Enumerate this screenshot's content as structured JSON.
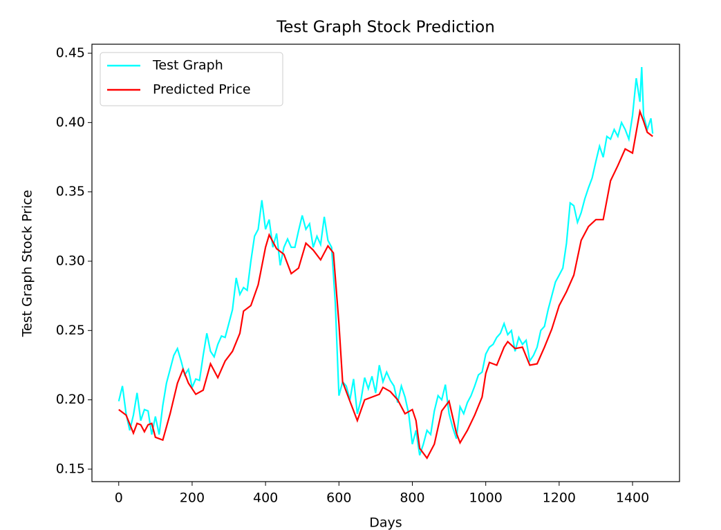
{
  "chart_data": {
    "type": "line",
    "title": "Test Graph Stock Prediction",
    "x_label": "Days",
    "y_label": "Test Graph Stock Price",
    "xlim": [
      -73,
      1528
    ],
    "ylim": [
      0.141,
      0.4565
    ],
    "xticks": [
      0,
      200,
      400,
      600,
      800,
      1000,
      1200,
      1400
    ],
    "yticks": [
      0.15,
      {
        "value": 0.2,
        "label": "0.20"
      },
      0.25,
      {
        "value": 0.3,
        "label": "0.30"
      },
      0.35,
      {
        "value": 0.4,
        "label": "0.40"
      },
      0.45
    ],
    "legend": "upper left",
    "series": [
      {
        "name": "Test Graph",
        "color": "#00ffff",
        "x": [
          0,
          10,
          20,
          30,
          40,
          50,
          60,
          70,
          80,
          90,
          100,
          110,
          120,
          130,
          140,
          150,
          160,
          170,
          180,
          190,
          200,
          210,
          220,
          230,
          240,
          250,
          260,
          270,
          280,
          290,
          300,
          310,
          320,
          330,
          340,
          350,
          360,
          370,
          380,
          390,
          400,
          410,
          420,
          430,
          440,
          450,
          460,
          470,
          480,
          490,
          500,
          510,
          520,
          530,
          540,
          550,
          560,
          570,
          580,
          590,
          600,
          610,
          620,
          630,
          640,
          650,
          660,
          670,
          680,
          690,
          700,
          710,
          720,
          730,
          740,
          750,
          760,
          770,
          780,
          790,
          800,
          810,
          820,
          830,
          840,
          850,
          860,
          870,
          880,
          890,
          900,
          910,
          920,
          930,
          940,
          950,
          960,
          970,
          980,
          990,
          1000,
          1010,
          1020,
          1030,
          1040,
          1050,
          1060,
          1070,
          1080,
          1090,
          1100,
          1110,
          1120,
          1130,
          1140,
          1150,
          1160,
          1170,
          1180,
          1190,
          1200,
          1210,
          1220,
          1230,
          1240,
          1250,
          1260,
          1270,
          1280,
          1290,
          1300,
          1310,
          1320,
          1330,
          1340,
          1350,
          1360,
          1370,
          1380,
          1390,
          1400,
          1410,
          1420,
          1425,
          1430,
          1440,
          1450,
          1455
        ],
        "values": [
          0.199,
          0.21,
          0.19,
          0.178,
          0.189,
          0.205,
          0.185,
          0.193,
          0.192,
          0.175,
          0.188,
          0.175,
          0.196,
          0.212,
          0.222,
          0.232,
          0.237,
          0.228,
          0.218,
          0.222,
          0.209,
          0.215,
          0.214,
          0.232,
          0.248,
          0.235,
          0.231,
          0.24,
          0.246,
          0.245,
          0.255,
          0.265,
          0.288,
          0.276,
          0.281,
          0.279,
          0.3,
          0.318,
          0.323,
          0.344,
          0.323,
          0.33,
          0.31,
          0.32,
          0.297,
          0.31,
          0.316,
          0.31,
          0.31,
          0.322,
          0.333,
          0.323,
          0.327,
          0.31,
          0.318,
          0.312,
          0.332,
          0.315,
          0.31,
          0.27,
          0.203,
          0.213,
          0.21,
          0.2,
          0.215,
          0.19,
          0.2,
          0.216,
          0.208,
          0.217,
          0.205,
          0.225,
          0.213,
          0.22,
          0.214,
          0.21,
          0.198,
          0.21,
          0.202,
          0.19,
          0.168,
          0.178,
          0.16,
          0.168,
          0.178,
          0.175,
          0.192,
          0.203,
          0.2,
          0.211,
          0.19,
          0.18,
          0.172,
          0.195,
          0.19,
          0.198,
          0.203,
          0.21,
          0.218,
          0.22,
          0.233,
          0.238,
          0.24,
          0.245,
          0.248,
          0.255,
          0.247,
          0.25,
          0.235,
          0.245,
          0.24,
          0.243,
          0.228,
          0.232,
          0.238,
          0.25,
          0.253,
          0.265,
          0.275,
          0.285,
          0.29,
          0.295,
          0.313,
          0.342,
          0.34,
          0.328,
          0.335,
          0.345,
          0.353,
          0.36,
          0.372,
          0.383,
          0.375,
          0.39,
          0.388,
          0.395,
          0.39,
          0.4,
          0.395,
          0.388,
          0.405,
          0.432,
          0.415,
          0.44,
          0.405,
          0.395,
          0.403,
          0.392
        ]
      },
      {
        "name": "Predicted Price",
        "color": "#ff0000",
        "x": [
          0,
          20,
          40,
          50,
          60,
          70,
          80,
          90,
          100,
          120,
          140,
          160,
          175,
          190,
          210,
          230,
          250,
          270,
          290,
          310,
          330,
          340,
          360,
          380,
          400,
          410,
          430,
          450,
          470,
          490,
          510,
          530,
          550,
          570,
          585,
          600,
          610,
          630,
          650,
          670,
          690,
          710,
          720,
          740,
          760,
          780,
          800,
          810,
          820,
          840,
          860,
          880,
          900,
          920,
          930,
          950,
          970,
          990,
          1000,
          1010,
          1030,
          1050,
          1060,
          1080,
          1100,
          1120,
          1140,
          1160,
          1180,
          1200,
          1220,
          1240,
          1260,
          1280,
          1300,
          1320,
          1340,
          1360,
          1380,
          1400,
          1420,
          1430,
          1440,
          1455
        ],
        "values": [
          0.193,
          0.189,
          0.176,
          0.183,
          0.182,
          0.177,
          0.182,
          0.183,
          0.173,
          0.171,
          0.19,
          0.212,
          0.222,
          0.212,
          0.204,
          0.207,
          0.226,
          0.216,
          0.228,
          0.235,
          0.248,
          0.264,
          0.268,
          0.283,
          0.31,
          0.319,
          0.309,
          0.305,
          0.291,
          0.295,
          0.313,
          0.308,
          0.301,
          0.311,
          0.306,
          0.255,
          0.213,
          0.199,
          0.185,
          0.2,
          0.202,
          0.204,
          0.209,
          0.206,
          0.2,
          0.19,
          0.193,
          0.185,
          0.165,
          0.158,
          0.168,
          0.192,
          0.199,
          0.176,
          0.169,
          0.178,
          0.189,
          0.202,
          0.219,
          0.227,
          0.225,
          0.238,
          0.242,
          0.237,
          0.238,
          0.225,
          0.226,
          0.238,
          0.251,
          0.268,
          0.278,
          0.29,
          0.315,
          0.325,
          0.33,
          0.33,
          0.358,
          0.369,
          0.381,
          0.378,
          0.408,
          0.401,
          0.393,
          0.39
        ]
      }
    ]
  }
}
